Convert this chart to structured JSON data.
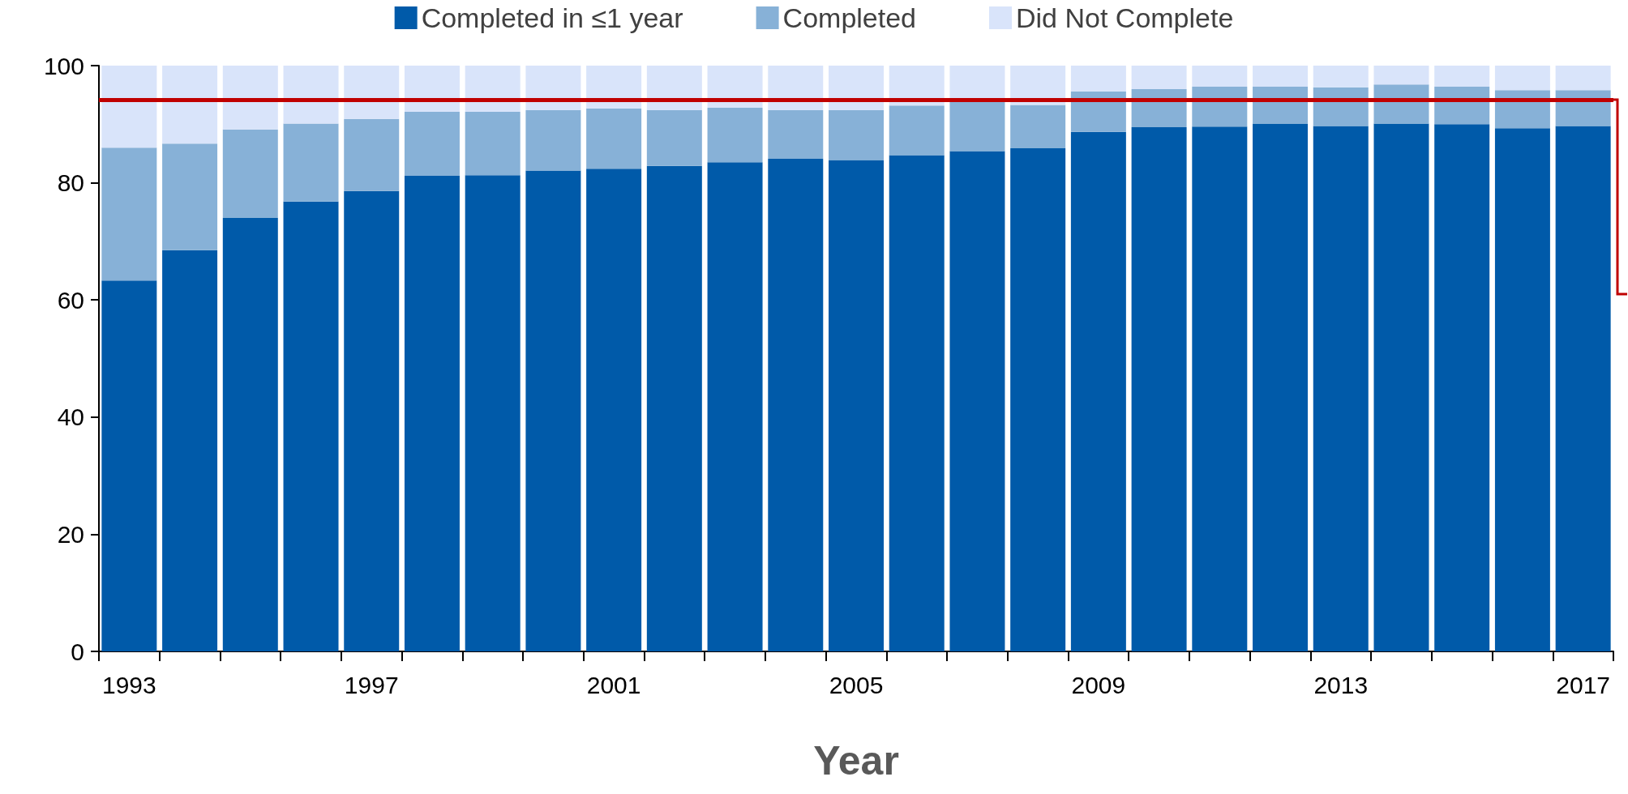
{
  "chart_data": {
    "type": "bar",
    "stacked": true,
    "xlabel": "Year",
    "categories": [
      "1993",
      null,
      null,
      null,
      "1997",
      null,
      null,
      null,
      "2001",
      null,
      null,
      null,
      "2005",
      null,
      null,
      null,
      "2009",
      null,
      null,
      null,
      "2013",
      null,
      null,
      null,
      "2017"
    ],
    "series": [
      {
        "name": "Completed in ≤1 year",
        "color": "#005aa9",
        "values": [
          63.3,
          68.5,
          74,
          76.8,
          78.6,
          81.2,
          81.3,
          82.1,
          82.4,
          82.9,
          83.5,
          84.1,
          83.9,
          84.7,
          85.4,
          85.9,
          88.7,
          89.5,
          89.6,
          90.1,
          89.7,
          90.1,
          90.0,
          89.3,
          89.7
        ]
      },
      {
        "name": "Completed",
        "color": "#87b1d7",
        "values": [
          22.7,
          18.2,
          15.1,
          13.3,
          12.3,
          10.9,
          10.8,
          10.3,
          10.3,
          9.5,
          9.3,
          8.3,
          8.5,
          8.5,
          8.4,
          7.4,
          6.9,
          6.5,
          6.8,
          6.3,
          6.6,
          6.7,
          6.4,
          6.5,
          6.1
        ]
      },
      {
        "name": "Did Not Complete",
        "color": "#d9e4fa",
        "values": [
          14,
          13.3,
          10.9,
          9.9,
          9.1,
          7.9,
          7.9,
          7.6,
          7.3,
          7.6,
          7.2,
          7.6,
          7.6,
          6.8,
          6.2,
          6.7,
          4.4,
          4.0,
          3.6,
          3.6,
          3.7,
          3.2,
          3.6,
          4.2,
          4.2
        ]
      }
    ],
    "ylim": [
      0,
      100
    ],
    "yticks": [
      0,
      20,
      40,
      60,
      80,
      100
    ],
    "grid": false,
    "legend": "top",
    "ref_lines": [
      {
        "axis": "y",
        "value": 94.2,
        "color": "#c00000"
      }
    ]
  }
}
